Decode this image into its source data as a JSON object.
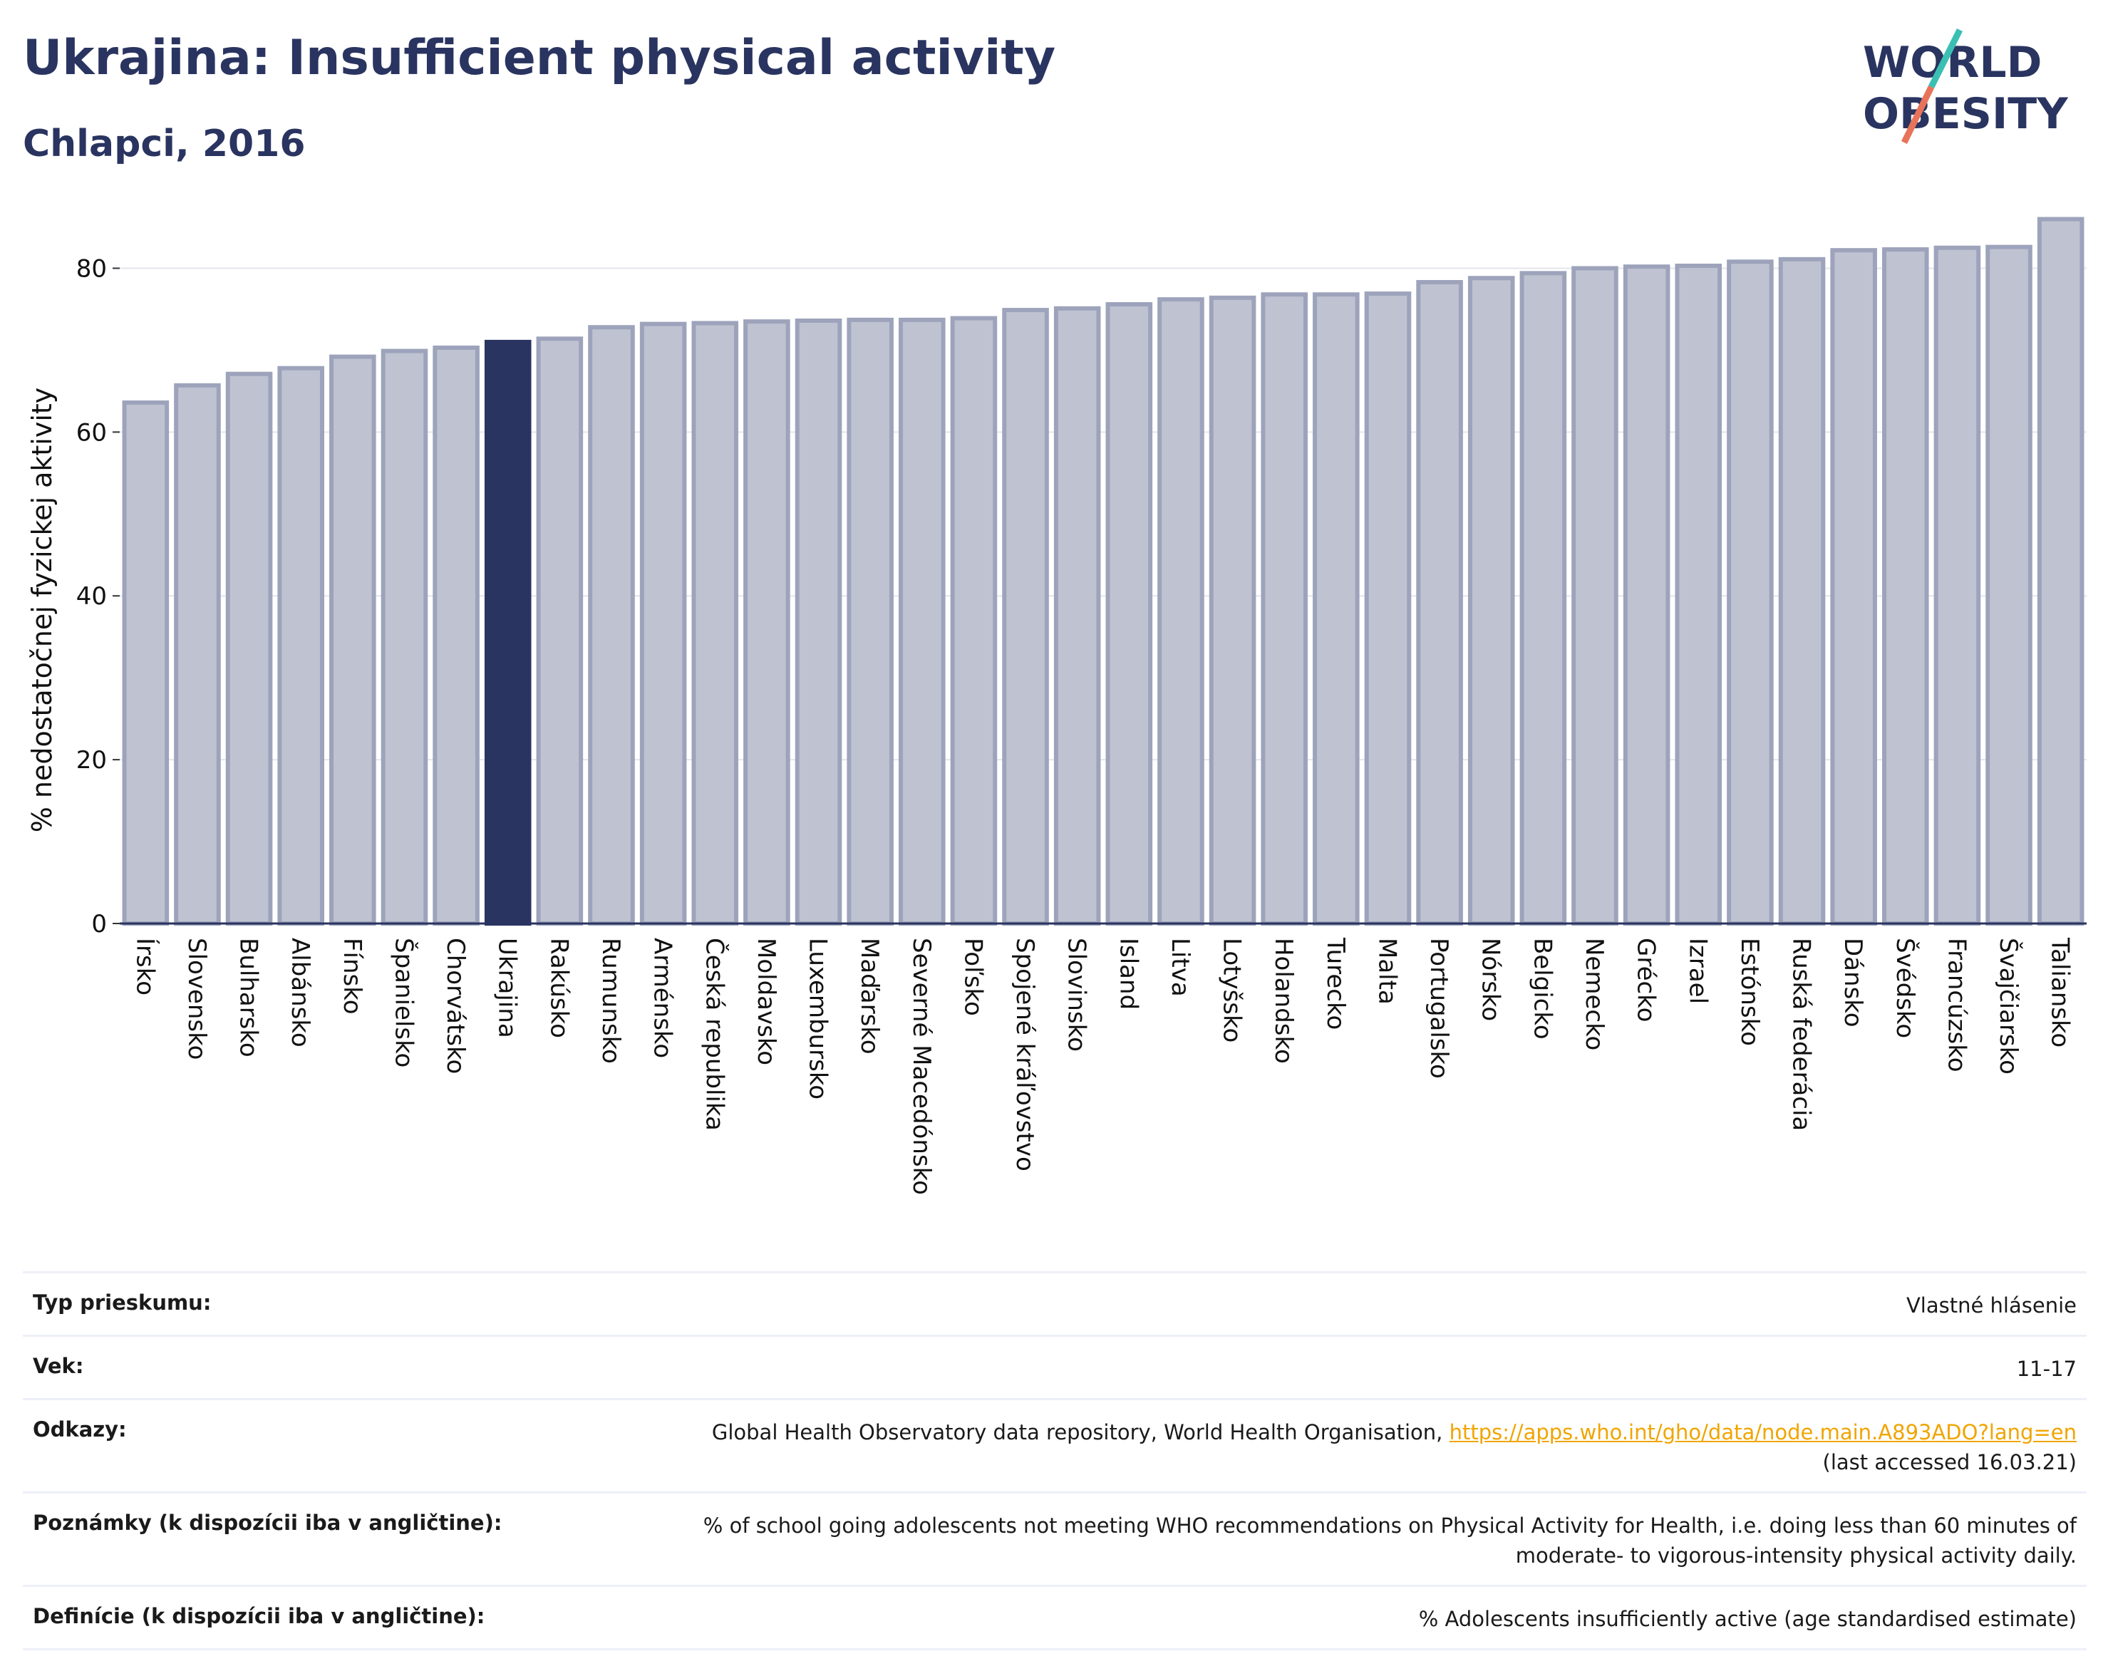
{
  "header": {
    "title": "Ukrajina: Insufficient physical activity",
    "subtitle": "Chlapci, 2016"
  },
  "logo": {
    "line1": "WORLD",
    "line2": "OBESITY",
    "text_color": "#2a3460",
    "slash_colors": [
      "#3bbfb3",
      "#e8735a"
    ]
  },
  "colors": {
    "bar_default": "#bfc3d1",
    "bar_border": "#9da3bb",
    "bar_highlight": "#2a3460",
    "grid": "#e4e6ee",
    "baseline": "#2a3460"
  },
  "chart_data": {
    "type": "bar",
    "title": "",
    "xlabel": "",
    "ylabel": "% nedostatočnej fyzickej aktivity",
    "ylim": [
      0,
      87
    ],
    "yticks": [
      0,
      20,
      40,
      60,
      80
    ],
    "grid": true,
    "highlight": "Ukrajina",
    "categories": [
      "Írsko",
      "Slovensko",
      "Bulharsko",
      "Albánsko",
      "Fínsko",
      "Španielsko",
      "Chorvátsko",
      "Ukrajina",
      "Rakúsko",
      "Rumunsko",
      "Arménsko",
      "Česká republika",
      "Moldavsko",
      "Luxembursko",
      "Maďarsko",
      "Severné Macedónsko",
      "Poľsko",
      "Spojené kráľovstvo",
      "Slovinsko",
      "Island",
      "Litva",
      "Lotyšsko",
      "Holandsko",
      "Turecko",
      "Malta",
      "Portugalsko",
      "Nórsko",
      "Belgicko",
      "Nemecko",
      "Grécko",
      "Izrael",
      "Estónsko",
      "Ruská federácia",
      "Dánsko",
      "Švédsko",
      "Francúzsko",
      "Švajčiarsko",
      "Taliansko"
    ],
    "values": [
      63.6,
      65.7,
      67.1,
      67.8,
      69.2,
      69.9,
      70.3,
      71.0,
      71.4,
      72.8,
      73.2,
      73.3,
      73.5,
      73.6,
      73.7,
      73.7,
      73.9,
      74.9,
      75.1,
      75.6,
      76.2,
      76.4,
      76.8,
      76.8,
      76.9,
      78.3,
      78.8,
      79.4,
      80.0,
      80.2,
      80.3,
      80.8,
      81.1,
      82.2,
      82.3,
      82.5,
      82.6,
      86.0
    ]
  },
  "meta": {
    "rows": [
      {
        "label": "Typ prieskumu:",
        "value": "Vlastné hlásenie"
      },
      {
        "label": "Vek:",
        "value": "11-17"
      },
      {
        "label": "Odkazy:",
        "value_pre": "Global Health Observatory data repository, World Health Organisation, ",
        "link": "https://apps.who.int/gho/data/node.main.A893ADO?lang=en",
        "value_post": "(last accessed 16.03.21)"
      },
      {
        "label": "Poznámky (k dispozícii iba v angličtine):",
        "value": "% of school going adolescents not meeting WHO recommendations on Physical Activity for Health, i.e. doing less than 60 minutes of moderate- to vigorous-intensity physical activity daily."
      },
      {
        "label": "Definície (k dispozícii iba v angličtine):",
        "value": "% Adolescents insufficiently active (age standardised estimate)"
      }
    ]
  }
}
